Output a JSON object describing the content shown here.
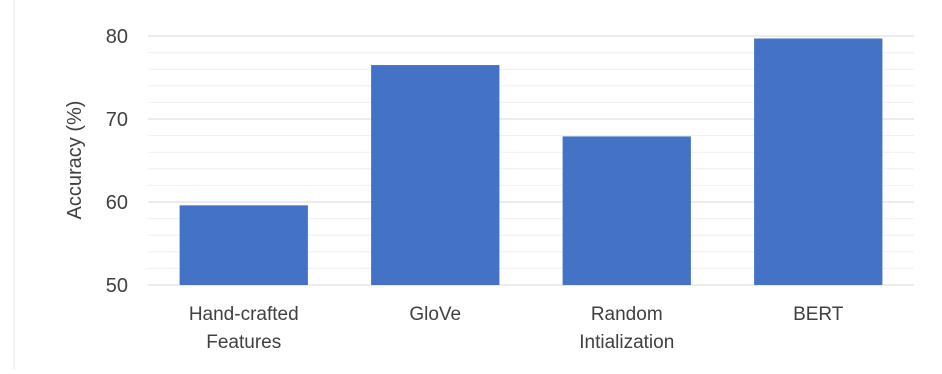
{
  "chart_data": {
    "type": "bar",
    "categories": [
      [
        "Hand-crafted",
        "Features"
      ],
      [
        "GloVe"
      ],
      [
        "Random",
        "Intialization"
      ],
      [
        "BERT"
      ]
    ],
    "values": [
      59.6,
      76.5,
      67.9,
      79.7
    ],
    "ylabel": "Accuracy (%)",
    "xlabel": "",
    "title": "",
    "ylim": [
      50,
      80
    ],
    "yticks": [
      50,
      60,
      70,
      80
    ],
    "minor_grid_step": 2,
    "grid": true,
    "legend": "none"
  },
  "colors": {
    "bar": "#4472c4",
    "major_grid": "#d9d9d9",
    "minor_grid": "#efefef",
    "text": "#404040",
    "axis_line": "#d9d9d9"
  }
}
